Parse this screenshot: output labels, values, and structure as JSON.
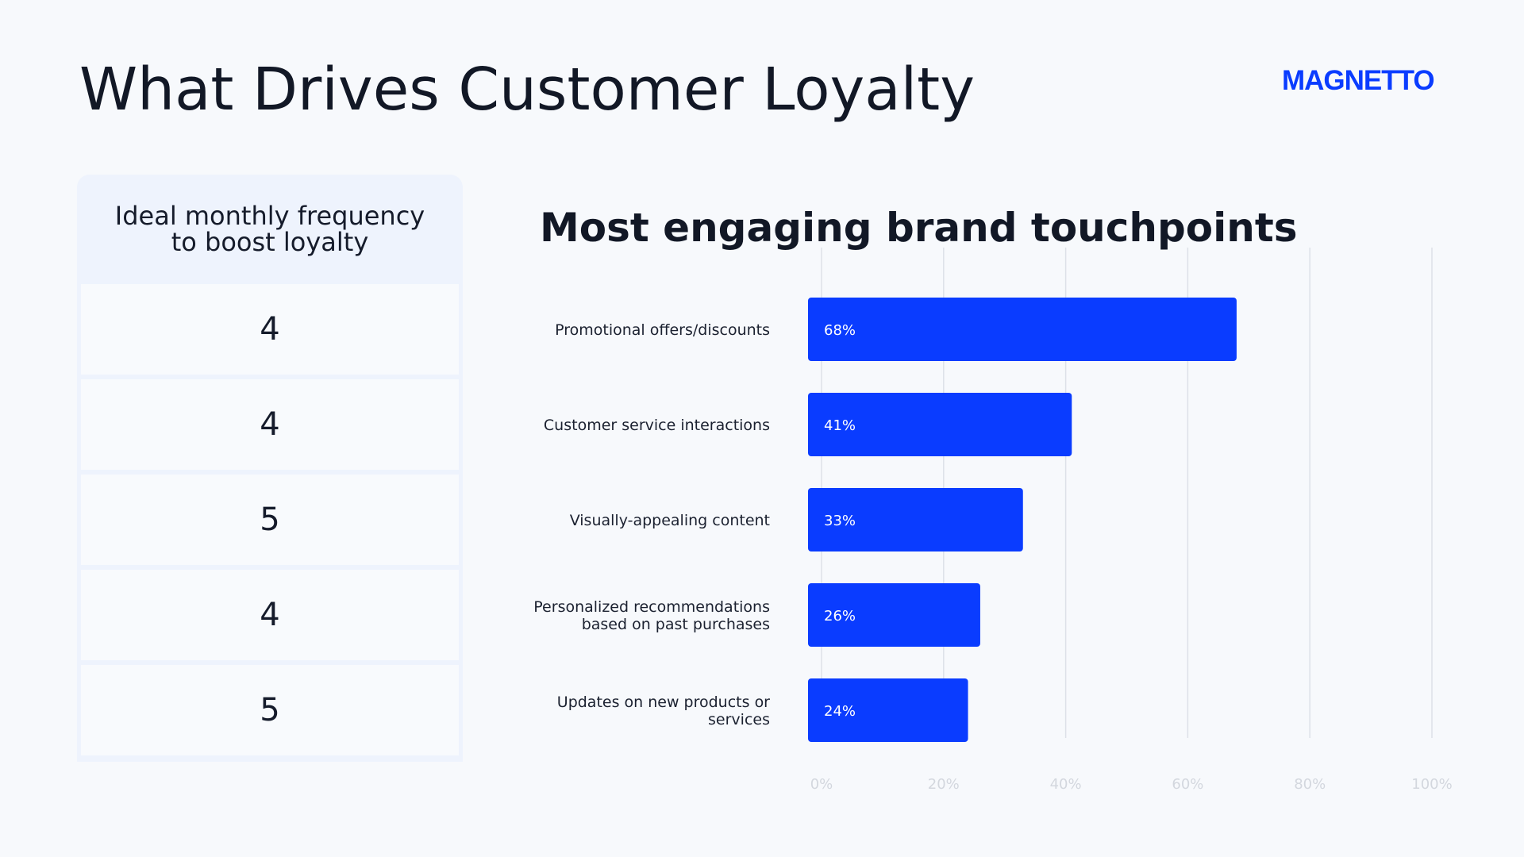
{
  "title": "What Drives Customer Loyalty",
  "logo": "MAGNETTO",
  "brand_color": "#0a3cff",
  "frequency_panel": {
    "header": "Ideal monthly frequency\nto boost loyalty",
    "values": [
      "4",
      "4",
      "5",
      "4",
      "5"
    ]
  },
  "chart_data": {
    "type": "bar",
    "orientation": "horizontal",
    "title": "Most engaging brand touchpoints",
    "categories": [
      "Promotional offers/discounts",
      "Customer service interactions",
      "Visually-appealing content",
      "Personalized recommendations\nbased on past purchases",
      "Updates on new products or\nservices"
    ],
    "values": [
      68,
      41,
      33,
      26,
      24
    ],
    "data_labels": [
      "68%",
      "41%",
      "33%",
      "26%",
      "24%"
    ],
    "xlim": [
      0,
      100
    ],
    "x_ticks": [
      "0%",
      "20%",
      "40%",
      "60%",
      "80%",
      "100%"
    ],
    "grid": "vertical",
    "bar_color": "#0a3cff",
    "xlabel": "",
    "ylabel": ""
  }
}
